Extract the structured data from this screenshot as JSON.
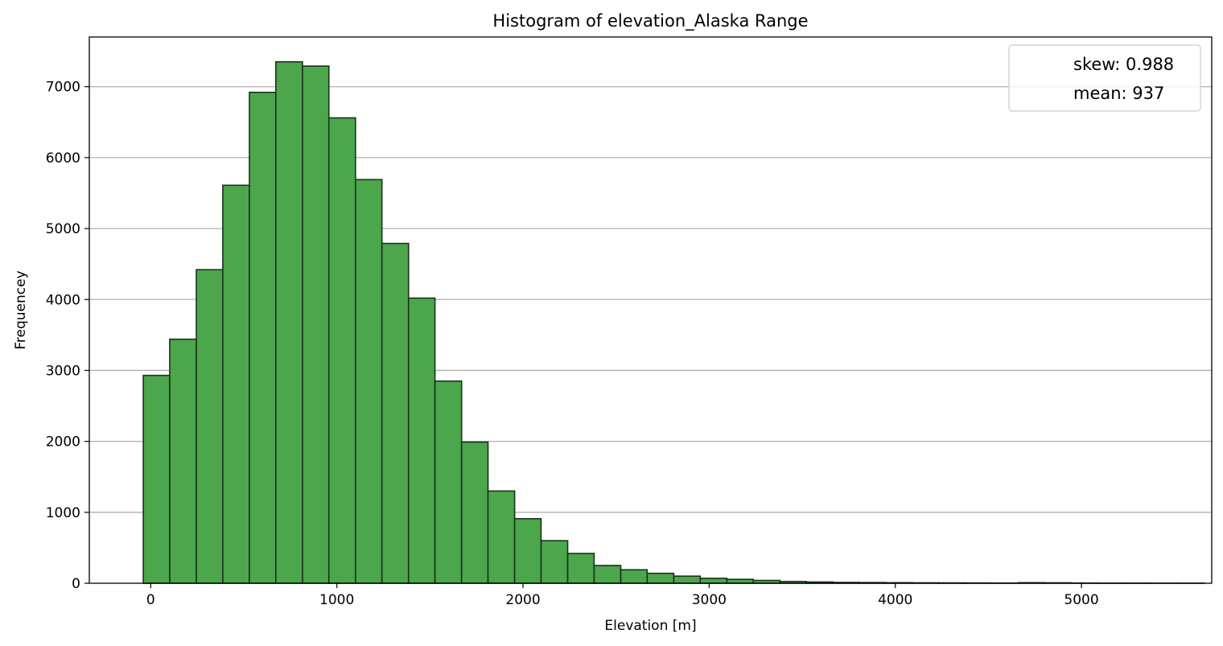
{
  "chart_data": {
    "type": "bar",
    "title": "Histogram of elevation_Alaska Range",
    "xlabel": "Elevation [m]",
    "ylabel": "Frequencey",
    "xlim": [
      -330,
      5700
    ],
    "ylim": [
      0,
      7700
    ],
    "xticks": [
      0,
      1000,
      2000,
      3000,
      4000,
      5000
    ],
    "yticks": [
      0,
      1000,
      2000,
      3000,
      4000,
      5000,
      6000,
      7000
    ],
    "grid": "y",
    "bar_color": "#4ca64c",
    "edge_color": "#1a331a",
    "bin_edges": [
      -40,
      102,
      245,
      387,
      530,
      672,
      815,
      957,
      1100,
      1242,
      1385,
      1527,
      1670,
      1812,
      1955,
      2097,
      2240,
      2382,
      2525,
      2667,
      2810,
      2952,
      3095,
      3237,
      3380,
      3522,
      3665,
      3807,
      3950,
      4092,
      4235,
      4377,
      4520,
      4662,
      4805,
      4947,
      5090,
      5232,
      5375,
      5517,
      5660
    ],
    "values": [
      2930,
      3440,
      4420,
      5610,
      6920,
      7350,
      7290,
      6560,
      5690,
      4790,
      4020,
      2850,
      1990,
      1300,
      910,
      600,
      420,
      250,
      190,
      140,
      100,
      70,
      55,
      40,
      25,
      18,
      12,
      10,
      8,
      6,
      5,
      4,
      3,
      8,
      6,
      3,
      2,
      2,
      1,
      1
    ],
    "legend": {
      "placement": "top-right",
      "entries": [
        "skew: 0.988",
        "mean: 937"
      ]
    }
  }
}
